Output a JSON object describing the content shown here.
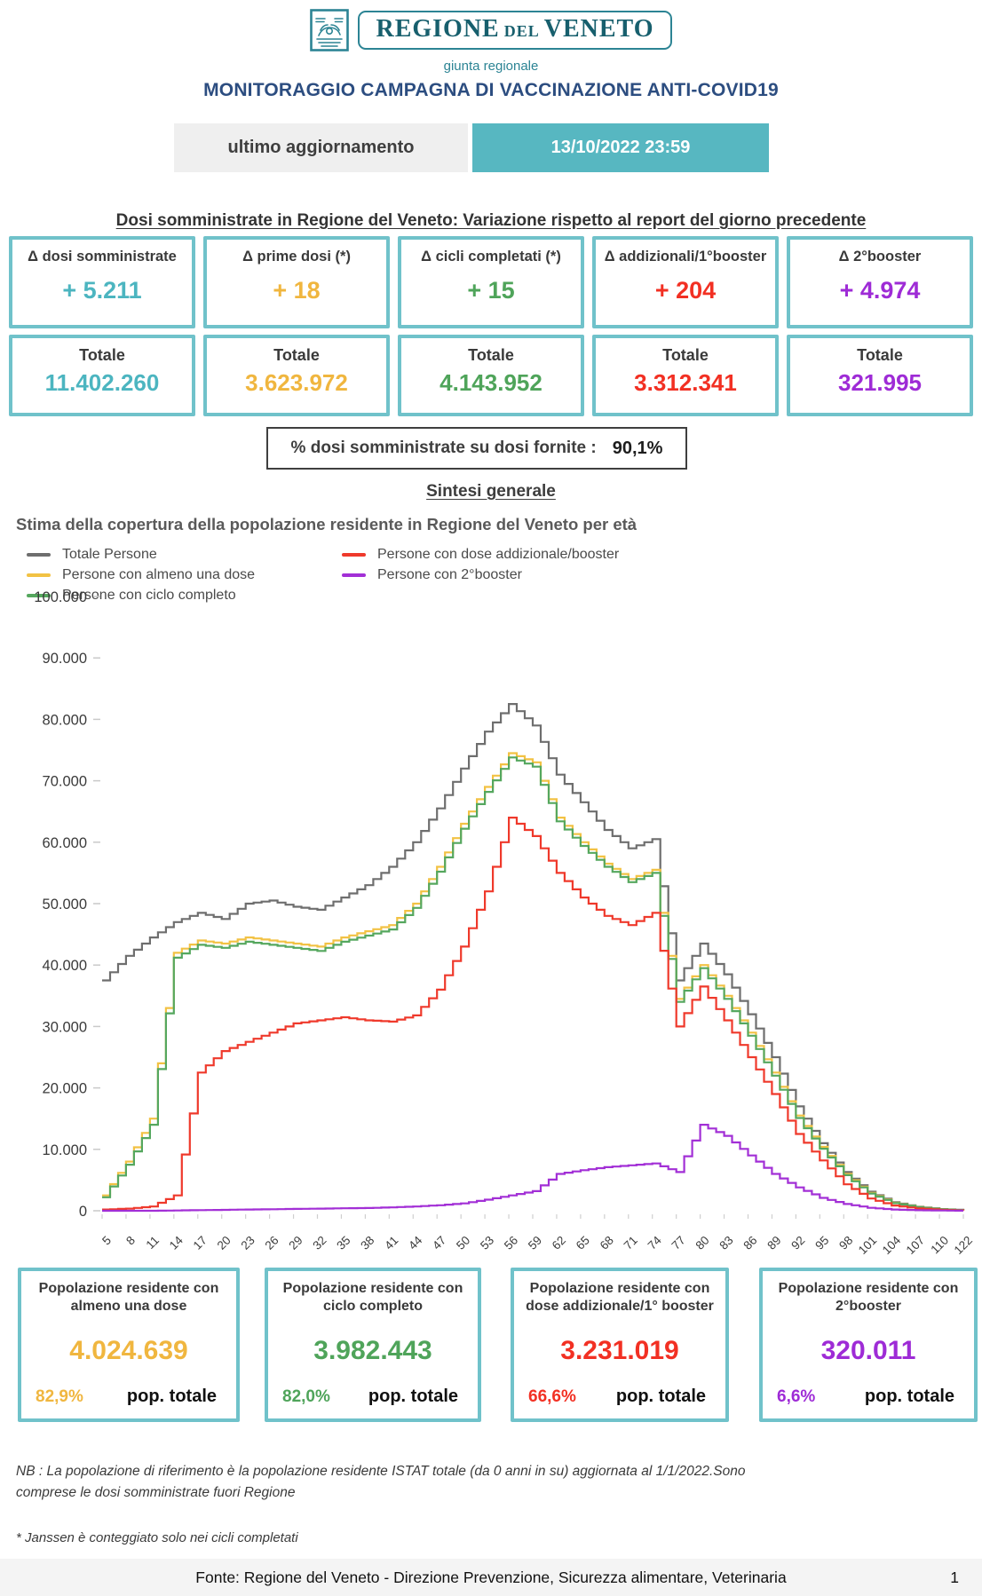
{
  "header": {
    "logo_regione": "REGIONE",
    "logo_del": "DEL",
    "logo_veneto": "VENETO",
    "logo_subtitle": "giunta regionale",
    "title": "MONITORAGGIO CAMPAGNA DI VACCINAZIONE ANTI-COVID19"
  },
  "update": {
    "label": "ultimo aggiornamento",
    "value": "13/10/2022 23:59"
  },
  "doses_section": {
    "heading": "Dosi somministrate in Regione del Veneto: Variazione rispetto al report del giorno precedente",
    "cards": [
      {
        "label": "Δ dosi somministrate",
        "delta": "+ 5.211",
        "total_label": "Totale",
        "total": "11.402.260",
        "color": "#4cb5c0"
      },
      {
        "label": "Δ prime dosi (*)",
        "delta": "+ 18",
        "total_label": "Totale",
        "total": "3.623.972",
        "color": "#f0b63f"
      },
      {
        "label": "Δ cicli completati (*)",
        "delta": "+ 15",
        "total_label": "Totale",
        "total": "4.143.952",
        "color": "#4fa45a"
      },
      {
        "label": "Δ addizionali/1°booster",
        "delta": "+ 204",
        "total_label": "Totale",
        "total": "3.312.341",
        "color": "#f23023"
      },
      {
        "label": "Δ 2°booster",
        "delta": "+ 4.974",
        "total_label": "Totale",
        "total": "321.995",
        "color": "#9e2bd6"
      }
    ],
    "supply_ratio_label": "% dosi somministrate su dosi fornite :",
    "supply_ratio_value": "90,1%"
  },
  "summary": {
    "heading": "Sintesi generale",
    "subtitle": "Stima della copertura della popolazione residente in Regione del Veneto per età"
  },
  "chart_data": {
    "type": "line",
    "step": true,
    "title": "Stima della copertura della popolazione residente in Regione del Veneto per età",
    "ylim": [
      0,
      100000
    ],
    "y_ticks": [
      "0",
      "10.000",
      "20.000",
      "30.000",
      "40.000",
      "50.000",
      "60.000",
      "70.000",
      "80.000",
      "90.000",
      "100.000"
    ],
    "categories": [
      "5",
      "8",
      "11",
      "14",
      "17",
      "20",
      "23",
      "26",
      "29",
      "32",
      "35",
      "38",
      "41",
      "44",
      "47",
      "50",
      "53",
      "56",
      "59",
      "62",
      "65",
      "68",
      "71",
      "74",
      "77",
      "80",
      "83",
      "86",
      "89",
      "92",
      "95",
      "98",
      "101",
      "104",
      "107",
      "110",
      "122"
    ],
    "grid": false,
    "legend_position": "top-left",
    "series": [
      {
        "name": "Totale Persone",
        "color": "#6e6e6e",
        "values": [
          37500,
          41500,
          44500,
          47000,
          48500,
          47500,
          50000,
          50500,
          49500,
          49000,
          51000,
          53000,
          56000,
          60000,
          65500,
          72000,
          78000,
          82500,
          79000,
          71000,
          66500,
          62000,
          59000,
          60500,
          37500,
          43500,
          38500,
          32000,
          25000,
          17000,
          11000,
          6300,
          3100,
          1400,
          650,
          280,
          90
        ]
      },
      {
        "name": "Persone con almeno una dose",
        "color": "#f2c244",
        "values": [
          2500,
          8000,
          15000,
          42000,
          44000,
          43500,
          44500,
          44000,
          43500,
          43000,
          44500,
          45500,
          46500,
          50000,
          56000,
          63000,
          69000,
          74500,
          73000,
          64000,
          60000,
          56500,
          54000,
          55500,
          34500,
          40000,
          35000,
          29000,
          22500,
          15500,
          10400,
          6000,
          2900,
          1300,
          600,
          250,
          80
        ]
      },
      {
        "name": "Persone con ciclo completo",
        "color": "#55a75e",
        "values": [
          2200,
          7500,
          14000,
          41200,
          43300,
          42800,
          43800,
          43300,
          42800,
          42300,
          43800,
          44800,
          45800,
          49300,
          55200,
          62200,
          68200,
          73800,
          72300,
          63400,
          59400,
          56000,
          53500,
          55000,
          34000,
          39500,
          34500,
          28500,
          22000,
          15100,
          10100,
          5800,
          2800,
          1250,
          580,
          240,
          65
        ]
      },
      {
        "name": "Persone con dose addizionale/booster",
        "color": "#ef392b",
        "values": [
          200,
          350,
          700,
          2500,
          22500,
          26000,
          27500,
          29000,
          30500,
          31000,
          31500,
          31000,
          30800,
          31800,
          36000,
          43000,
          52000,
          64000,
          61000,
          55000,
          51000,
          48000,
          46500,
          48500,
          30000,
          36500,
          31000,
          25000,
          19000,
          12500,
          8200,
          4300,
          2000,
          850,
          380,
          150,
          40
        ]
      },
      {
        "name": "Persone con 2°booster",
        "color": "#a22fd6",
        "values": [
          0,
          0,
          0,
          50,
          100,
          150,
          200,
          250,
          300,
          350,
          400,
          450,
          550,
          700,
          900,
          1200,
          1800,
          2500,
          3200,
          6000,
          6600,
          7100,
          7400,
          7700,
          6300,
          14000,
          12200,
          9000,
          6000,
          3800,
          2100,
          1100,
          480,
          200,
          90,
          40,
          10
        ]
      }
    ]
  },
  "population_cards": [
    {
      "title": "Popolazione residente con almeno una dose",
      "value": "4.024.639",
      "pct": "82,9%",
      "pop_label": "pop. totale",
      "color": "#f0b63f"
    },
    {
      "title": "Popolazione residente con ciclo completo",
      "value": "3.982.443",
      "pct": "82,0%",
      "pop_label": "pop. totale",
      "color": "#4fa45a"
    },
    {
      "title": "Popolazione residente con dose addizionale/1° booster",
      "value": "3.231.019",
      "pct": "66,6%",
      "pop_label": "pop. totale",
      "color": "#f23023"
    },
    {
      "title": "Popolazione residente con 2°booster",
      "value": "320.011",
      "pct": "6,6%",
      "pop_label": "pop. totale",
      "color": "#9e2bd6"
    }
  ],
  "notes": {
    "nb": "NB : La popolazione di riferimento è la popolazione residente ISTAT totale (da 0 anni in su) aggiornata  al 1/1/2022.Sono comprese le dosi somministrate fuori Regione",
    "janssen": "* Janssen è conteggiato solo nei cicli completati"
  },
  "footer": {
    "source": "Fonte: Regione del Veneto - Direzione Prevenzione, Sicurezza alimentare, Veterinaria",
    "page": "1"
  }
}
